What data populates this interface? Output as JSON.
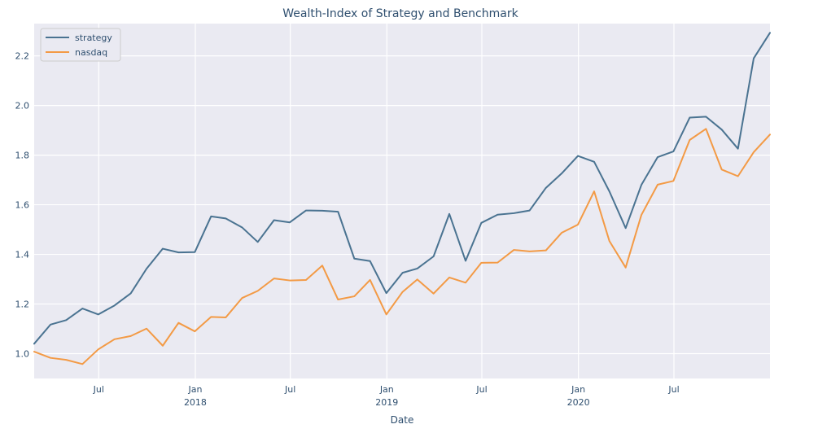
{
  "chart_data": {
    "type": "line",
    "title": "Wealth-Index of Strategy and Benchmark",
    "xlabel": "Date",
    "ylabel": "",
    "x": [
      "2017-02-28",
      "2017-03-31",
      "2017-04-30",
      "2017-05-31",
      "2017-06-30",
      "2017-07-31",
      "2017-08-31",
      "2017-09-30",
      "2017-10-31",
      "2017-11-30",
      "2017-12-31",
      "2018-01-31",
      "2018-02-28",
      "2018-03-31",
      "2018-04-30",
      "2018-05-31",
      "2018-06-30",
      "2018-07-31",
      "2018-08-31",
      "2018-09-30",
      "2018-10-31",
      "2018-11-30",
      "2018-12-31",
      "2019-01-31",
      "2019-02-28",
      "2019-03-31",
      "2019-04-30",
      "2019-05-31",
      "2019-06-30",
      "2019-07-31",
      "2019-08-31",
      "2019-09-30",
      "2019-10-31",
      "2019-11-30",
      "2019-12-31",
      "2020-01-31",
      "2020-02-29",
      "2020-03-31",
      "2020-04-30",
      "2020-05-31",
      "2020-06-30",
      "2020-07-31",
      "2020-08-31",
      "2020-09-30",
      "2020-10-31",
      "2020-11-30",
      "2020-12-31"
    ],
    "series": [
      {
        "name": "strategy",
        "color": "#4a7391",
        "values": [
          1.04,
          1.117,
          1.135,
          1.182,
          1.158,
          1.194,
          1.243,
          1.342,
          1.423,
          1.408,
          1.409,
          1.553,
          1.545,
          1.509,
          1.45,
          1.538,
          1.529,
          1.577,
          1.576,
          1.572,
          1.383,
          1.373,
          1.244,
          1.326,
          1.343,
          1.392,
          1.563,
          1.374,
          1.527,
          1.56,
          1.566,
          1.577,
          1.668,
          1.726,
          1.797,
          1.773,
          1.654,
          1.506,
          1.68,
          1.792,
          1.815,
          1.951,
          1.955,
          1.903,
          1.826,
          2.19,
          2.293
        ]
      },
      {
        "name": "nasdaq",
        "color": "#f39a45",
        "values": [
          1.008,
          0.983,
          0.975,
          0.958,
          1.017,
          1.058,
          1.071,
          1.101,
          1.032,
          1.124,
          1.09,
          1.148,
          1.146,
          1.224,
          1.253,
          1.303,
          1.295,
          1.297,
          1.355,
          1.218,
          1.231,
          1.297,
          1.158,
          1.249,
          1.299,
          1.242,
          1.307,
          1.286,
          1.366,
          1.367,
          1.418,
          1.412,
          1.416,
          1.487,
          1.52,
          1.654,
          1.454,
          1.347,
          1.559,
          1.681,
          1.696,
          1.861,
          1.906,
          1.742,
          1.715,
          1.812,
          1.883
        ]
      }
    ],
    "ylim": [
      0.9,
      2.33
    ],
    "yticks": [
      "1.0",
      "1.2",
      "1.4",
      "1.6",
      "1.8",
      "2.0",
      "2.2"
    ],
    "xticks": [
      {
        "date": "2017-07-01",
        "label": "Jul",
        "year": ""
      },
      {
        "date": "2018-01-01",
        "label": "Jan",
        "year": "2018"
      },
      {
        "date": "2018-07-01",
        "label": "Jul",
        "year": ""
      },
      {
        "date": "2019-01-01",
        "label": "Jan",
        "year": "2019"
      },
      {
        "date": "2019-07-01",
        "label": "Jul",
        "year": ""
      },
      {
        "date": "2020-01-01",
        "label": "Jan",
        "year": "2020"
      },
      {
        "date": "2020-07-01",
        "label": "Jul",
        "year": ""
      }
    ],
    "grid": true,
    "legend_position": "top-left",
    "background": "#eaeaf2"
  }
}
